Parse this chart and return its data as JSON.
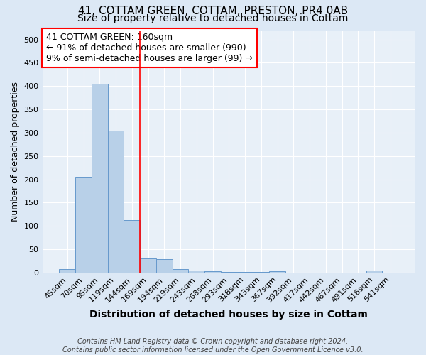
{
  "title": "41, COTTAM GREEN, COTTAM, PRESTON, PR4 0AB",
  "subtitle": "Size of property relative to detached houses in Cottam",
  "xlabel": "Distribution of detached houses by size in Cottam",
  "ylabel": "Number of detached properties",
  "categories": [
    "45sqm",
    "70sqm",
    "95sqm",
    "119sqm",
    "144sqm",
    "169sqm",
    "194sqm",
    "219sqm",
    "243sqm",
    "268sqm",
    "293sqm",
    "318sqm",
    "343sqm",
    "367sqm",
    "392sqm",
    "417sqm",
    "442sqm",
    "467sqm",
    "491sqm",
    "516sqm",
    "541sqm"
  ],
  "values": [
    8,
    205,
    405,
    305,
    113,
    30,
    28,
    8,
    5,
    3,
    1,
    1,
    1,
    3,
    0,
    0,
    0,
    0,
    0,
    4,
    0
  ],
  "bar_color": "#b8d0e8",
  "bar_edgecolor": "#6699cc",
  "bar_width": 1.0,
  "red_line_x": 4.5,
  "annotation_text": "41 COTTAM GREEN: 160sqm\n← 91% of detached houses are smaller (990)\n9% of semi-detached houses are larger (99) →",
  "annotation_box_color": "white",
  "annotation_box_edgecolor": "red",
  "ylim": [
    0,
    520
  ],
  "yticks": [
    0,
    50,
    100,
    150,
    200,
    250,
    300,
    350,
    400,
    450,
    500
  ],
  "background_color": "#dce8f5",
  "plot_bg_color": "#e8f0f8",
  "grid_color": "white",
  "footer": "Contains HM Land Registry data © Crown copyright and database right 2024.\nContains public sector information licensed under the Open Government Licence v3.0.",
  "title_fontsize": 11,
  "subtitle_fontsize": 10,
  "xlabel_fontsize": 10,
  "ylabel_fontsize": 9,
  "tick_fontsize": 8,
  "annotation_fontsize": 9,
  "footer_fontsize": 7
}
